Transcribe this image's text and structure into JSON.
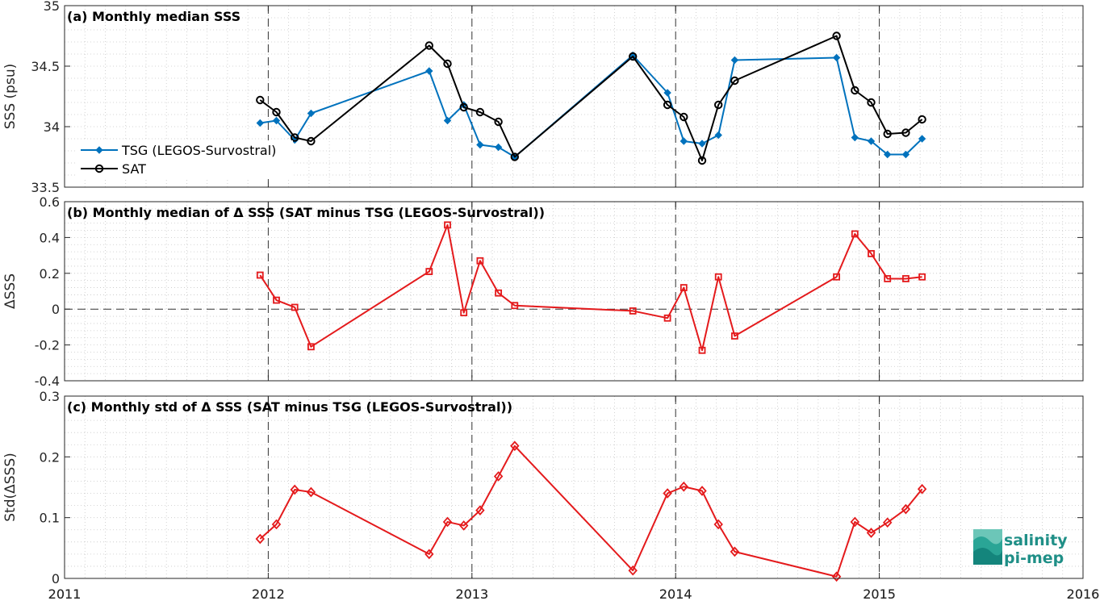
{
  "chart_data": [
    {
      "type": "line",
      "panel": "a",
      "title": "(a) Monthly median SSS",
      "xlabel": "",
      "ylabel": "SSS (psu)",
      "xlim": [
        2011,
        2016
      ],
      "ylim": [
        33.5,
        35
      ],
      "yticks": [
        "33.5",
        "34",
        "34.5",
        "35"
      ],
      "xticks": [
        "2011",
        "2012",
        "2013",
        "2014",
        "2015",
        "2016"
      ],
      "grid": "minor-dotted",
      "legend_position": "bottom-left",
      "series": [
        {
          "name": "TSG (LEGOS-Survostral)",
          "color": "#0072bd",
          "marker": "diamond",
          "x": [
            2011.96,
            2012.04,
            2012.13,
            2012.21,
            2012.79,
            2012.88,
            2012.96,
            2013.04,
            2013.13,
            2013.21,
            2013.79,
            2013.96,
            2014.04,
            2014.13,
            2014.21,
            2014.29,
            2014.79,
            2014.88,
            2014.96,
            2015.04,
            2015.13,
            2015.21
          ],
          "values": [
            34.03,
            34.05,
            33.89,
            34.11,
            34.46,
            34.05,
            34.18,
            33.85,
            33.83,
            33.75,
            34.59,
            34.28,
            33.88,
            33.86,
            33.93,
            34.55,
            34.57,
            33.91,
            33.88,
            33.77,
            33.77,
            33.9
          ]
        },
        {
          "name": "SAT",
          "color": "#000000",
          "marker": "circle",
          "x": [
            2011.96,
            2012.04,
            2012.13,
            2012.21,
            2012.79,
            2012.88,
            2012.96,
            2013.04,
            2013.13,
            2013.21,
            2013.79,
            2013.96,
            2014.04,
            2014.13,
            2014.21,
            2014.29,
            2014.79,
            2014.88,
            2014.96,
            2015.04,
            2015.13,
            2015.21
          ],
          "values": [
            34.22,
            34.12,
            33.91,
            33.88,
            34.67,
            34.52,
            34.16,
            34.12,
            34.04,
            33.75,
            34.58,
            34.18,
            34.08,
            33.72,
            34.18,
            34.38,
            34.75,
            34.3,
            34.2,
            33.94,
            33.95,
            34.06
          ]
        }
      ]
    },
    {
      "type": "line",
      "panel": "b",
      "title": "(b) Monthly median of Δ SSS (SAT minus TSG (LEGOS-Survostral))",
      "xlabel": "",
      "ylabel": "ΔSSS",
      "xlim": [
        2011,
        2016
      ],
      "ylim": [
        -0.4,
        0.6
      ],
      "yticks": [
        "-0.4",
        "-0.2",
        "0",
        "0.2",
        "0.4",
        "0.6"
      ],
      "grid": "minor-dotted",
      "zero_line": "dashed",
      "series": [
        {
          "color": "#e41a1c",
          "marker": "square",
          "x": [
            2011.96,
            2012.04,
            2012.13,
            2012.21,
            2012.79,
            2012.88,
            2012.96,
            2013.04,
            2013.13,
            2013.21,
            2013.79,
            2013.96,
            2014.04,
            2014.13,
            2014.21,
            2014.29,
            2014.79,
            2014.88,
            2014.96,
            2015.04,
            2015.13,
            2015.21
          ],
          "values": [
            0.19,
            0.05,
            0.01,
            -0.21,
            0.21,
            0.47,
            -0.02,
            0.27,
            0.09,
            0.02,
            -0.01,
            -0.05,
            0.12,
            -0.23,
            0.18,
            -0.15,
            0.18,
            0.42,
            0.31,
            0.17,
            0.17,
            0.18
          ]
        }
      ]
    },
    {
      "type": "line",
      "panel": "c",
      "title": "(c) Monthly std of Δ SSS (SAT minus TSG (LEGOS-Survostral))",
      "xlabel": "",
      "ylabel": "Std(ΔSSS)",
      "xlim": [
        2011,
        2016
      ],
      "ylim": [
        0,
        0.3
      ],
      "yticks": [
        "0",
        "0.1",
        "0.2",
        "0.3"
      ],
      "xticks": [
        "2011",
        "2012",
        "2013",
        "2014",
        "2015",
        "2016"
      ],
      "grid": "minor-dotted",
      "series": [
        {
          "color": "#e41a1c",
          "marker": "diamond",
          "x": [
            2011.96,
            2012.04,
            2012.13,
            2012.21,
            2012.79,
            2012.88,
            2012.96,
            2013.04,
            2013.13,
            2013.21,
            2013.79,
            2013.96,
            2014.04,
            2014.13,
            2014.21,
            2014.29,
            2014.79,
            2014.88,
            2014.96,
            2015.04,
            2015.13,
            2015.21
          ],
          "values": [
            0.065,
            0.089,
            0.146,
            0.142,
            0.04,
            0.093,
            0.087,
            0.112,
            0.168,
            0.218,
            0.013,
            0.14,
            0.151,
            0.144,
            0.089,
            0.044,
            0.003,
            0.093,
            0.075,
            0.092,
            0.114,
            0.147
          ]
        }
      ]
    }
  ],
  "logo": {
    "line1": "salinity",
    "line2": "pi-mep",
    "color": "#1f8f87"
  }
}
